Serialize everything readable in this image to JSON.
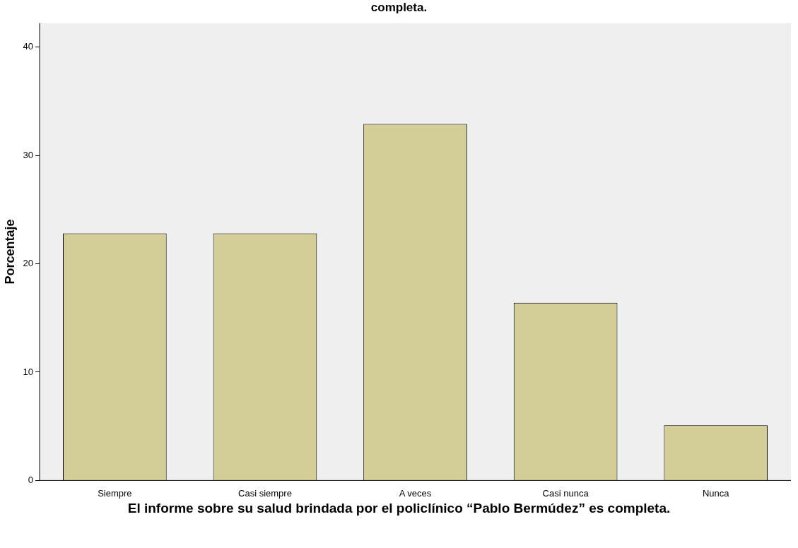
{
  "chart_data": {
    "type": "bar",
    "title": "completa.",
    "xlabel": "El informe sobre su salud brindada por el policlínico “Pablo Bermúdez” es completa.",
    "ylabel": "Porcentaje",
    "categories": [
      "Siempre",
      "Casi siempre",
      "A veces",
      "Casi nunca",
      "Nunca"
    ],
    "values": [
      22.8,
      22.8,
      32.9,
      16.4,
      5.1
    ],
    "color": "#d3ce97",
    "ylim": [
      0,
      42.2
    ],
    "yticks": [
      0,
      10,
      20,
      30,
      40
    ],
    "grid": false,
    "legend": false
  }
}
